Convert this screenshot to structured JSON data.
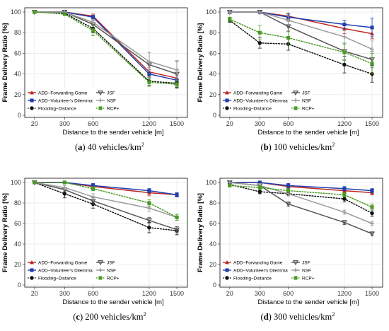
{
  "colors": {
    "forwarding_game": "#c0281e",
    "volunteer": "#1f3fb0",
    "flooding": "#111111",
    "jsf": "#555555",
    "nsf": "#9a9a9a",
    "rcp": "#4a9a22",
    "grid": "#e6e6e6"
  },
  "chart_data": [
    {
      "type": "line",
      "caption_label": "(a)",
      "caption_text": "40 vehicles/km",
      "caption_sup": "2",
      "xlabel": "Distance to the sender vehicle [m]",
      "ylabel": "Frame Delivery Ratio [%]",
      "categories": [
        "20",
        "300",
        "600",
        "1200",
        "1500"
      ],
      "yticks": [
        "0",
        "20",
        "40",
        "60",
        "80",
        "100"
      ],
      "ylim": [
        0,
        100
      ],
      "legend_position": "bottom-left",
      "series": [
        {
          "name": "ADD–Forwarding Game",
          "values": [
            100,
            100,
            96,
            42,
            36
          ],
          "errors": [
            0,
            0,
            2,
            4,
            4
          ],
          "style": "solid",
          "marker": "triangle"
        },
        {
          "name": "ADD–Volunteer's Dilemma",
          "values": [
            100,
            100,
            95,
            40,
            34
          ],
          "errors": [
            0,
            0,
            2,
            4,
            4
          ],
          "style": "solid",
          "marker": "square"
        },
        {
          "name": "Flooding–Distance",
          "values": [
            100,
            99,
            84,
            33,
            31
          ],
          "errors": [
            0,
            1,
            4,
            4,
            4
          ],
          "style": "dotted",
          "marker": "circle"
        },
        {
          "name": "JSF",
          "values": [
            100,
            100,
            88,
            49,
            40
          ],
          "errors": [
            0,
            0,
            4,
            12,
            12
          ],
          "style": "solid",
          "marker": "triangle-down"
        },
        {
          "name": "NSF",
          "values": [
            100,
            100,
            90,
            52,
            44
          ],
          "errors": [
            0,
            0,
            3,
            9,
            9
          ],
          "style": "solid",
          "marker": "plus"
        },
        {
          "name": "RCP+",
          "values": [
            100,
            98,
            82,
            32,
            30
          ],
          "errors": [
            0,
            1,
            5,
            4,
            4
          ],
          "style": "dotted",
          "marker": "square"
        }
      ]
    },
    {
      "type": "line",
      "caption_label": "(b)",
      "caption_text": "100 vehicles/km",
      "caption_sup": "2",
      "xlabel": "Distance to the sender vehicle [m]",
      "ylabel": "Frame Delivery Ratio [%]",
      "categories": [
        "20",
        "300",
        "600",
        "1200",
        "1500"
      ],
      "yticks": [
        "0",
        "20",
        "40",
        "60",
        "80",
        "100"
      ],
      "ylim": [
        0,
        100
      ],
      "legend_position": "bottom-left",
      "series": [
        {
          "name": "ADD–Forwarding Game",
          "values": [
            100,
            100,
            96,
            84,
            79
          ],
          "errors": [
            0,
            0,
            3,
            5,
            5
          ],
          "style": "solid",
          "marker": "triangle"
        },
        {
          "name": "ADD–Volunteer's Dilemma",
          "values": [
            100,
            100,
            95,
            88,
            85
          ],
          "errors": [
            0,
            0,
            3,
            4,
            9
          ],
          "style": "solid",
          "marker": "square"
        },
        {
          "name": "Flooding–Distance",
          "values": [
            92,
            70,
            69,
            49,
            40
          ],
          "errors": [
            2,
            5,
            6,
            8,
            8
          ],
          "style": "dotted",
          "marker": "circle"
        },
        {
          "name": "JSF",
          "values": [
            100,
            100,
            86,
            62,
            54
          ],
          "errors": [
            0,
            0,
            5,
            8,
            8
          ],
          "style": "solid",
          "marker": "triangle-down"
        },
        {
          "name": "NSF",
          "values": [
            100,
            100,
            92,
            76,
            64
          ],
          "errors": [
            0,
            0,
            4,
            6,
            8
          ],
          "style": "solid",
          "marker": "plus"
        },
        {
          "name": "RCP+",
          "values": [
            93,
            80,
            75,
            61,
            50
          ],
          "errors": [
            2,
            7,
            7,
            8,
            10
          ],
          "style": "dotted",
          "marker": "square"
        }
      ]
    },
    {
      "type": "line",
      "caption_label": "(c)",
      "caption_text": "200 vehicles/km",
      "caption_sup": "2",
      "xlabel": "Distance to the sender vehicle [m]",
      "ylabel": "Frame Delivery Ratio [%]",
      "categories": [
        "20",
        "300",
        "600",
        "1200",
        "1500"
      ],
      "yticks": [
        "0",
        "20",
        "40",
        "60",
        "80",
        "100"
      ],
      "ylim": [
        0,
        100
      ],
      "legend_position": "bottom-left",
      "series": [
        {
          "name": "ADD–Forwarding Game",
          "values": [
            100,
            100,
            96,
            90,
            88
          ],
          "errors": [
            0,
            0,
            2,
            3,
            2
          ],
          "style": "solid",
          "marker": "triangle"
        },
        {
          "name": "ADD–Volunteer's Dilemma",
          "values": [
            100,
            100,
            97,
            92,
            88
          ],
          "errors": [
            0,
            0,
            2,
            2,
            2
          ],
          "style": "solid",
          "marker": "square"
        },
        {
          "name": "Flooding–Distance",
          "values": [
            100,
            89,
            79,
            56,
            53
          ],
          "errors": [
            0,
            4,
            4,
            5,
            4
          ],
          "style": "dotted",
          "marker": "circle"
        },
        {
          "name": "JSF",
          "values": [
            100,
            93,
            82,
            63,
            54
          ],
          "errors": [
            0,
            2,
            3,
            3,
            3
          ],
          "style": "solid",
          "marker": "triangle-down"
        },
        {
          "name": "NSF",
          "values": [
            100,
            95,
            86,
            75,
            66
          ],
          "errors": [
            0,
            2,
            3,
            3,
            3
          ],
          "style": "solid",
          "marker": "plus"
        },
        {
          "name": "RCP+",
          "values": [
            100,
            100,
            94,
            80,
            66
          ],
          "errors": [
            0,
            0,
            2,
            3,
            3
          ],
          "style": "dotted",
          "marker": "square"
        }
      ]
    },
    {
      "type": "line",
      "caption_label": "(d)",
      "caption_text": "300 vehicles/km",
      "caption_sup": "2",
      "xlabel": "Distance to the sender vehicle [m]",
      "ylabel": "Frame Delivery Ratio [%]",
      "categories": [
        "20",
        "300",
        "600",
        "1200",
        "1500"
      ],
      "yticks": [
        "0",
        "20",
        "40",
        "60",
        "80",
        "100"
      ],
      "ylim": [
        0,
        100
      ],
      "legend_position": "bottom-left",
      "series": [
        {
          "name": "ADD–Forwarding Game",
          "values": [
            100,
            100,
            96,
            92,
            90
          ],
          "errors": [
            0,
            0,
            2,
            2,
            2
          ],
          "style": "solid",
          "marker": "triangle"
        },
        {
          "name": "ADD–Volunteer's Dilemma",
          "values": [
            100,
            100,
            97,
            94,
            92
          ],
          "errors": [
            0,
            0,
            2,
            2,
            2
          ],
          "style": "solid",
          "marker": "square"
        },
        {
          "name": "Flooding–Distance",
          "values": [
            98,
            91,
            89,
            84,
            70
          ],
          "errors": [
            1,
            2,
            2,
            3,
            3
          ],
          "style": "dotted",
          "marker": "circle"
        },
        {
          "name": "JSF",
          "values": [
            100,
            97,
            79,
            61,
            50
          ],
          "errors": [
            0,
            2,
            2,
            2,
            2
          ],
          "style": "solid",
          "marker": "triangle-down"
        },
        {
          "name": "NSF",
          "values": [
            100,
            97,
            89,
            71,
            60
          ],
          "errors": [
            0,
            2,
            2,
            2,
            2
          ],
          "style": "solid",
          "marker": "plus"
        },
        {
          "name": "RCP+",
          "values": [
            97,
            95,
            92,
            88,
            76
          ],
          "errors": [
            1,
            2,
            2,
            2,
            3
          ],
          "style": "dotted",
          "marker": "square"
        }
      ]
    }
  ]
}
